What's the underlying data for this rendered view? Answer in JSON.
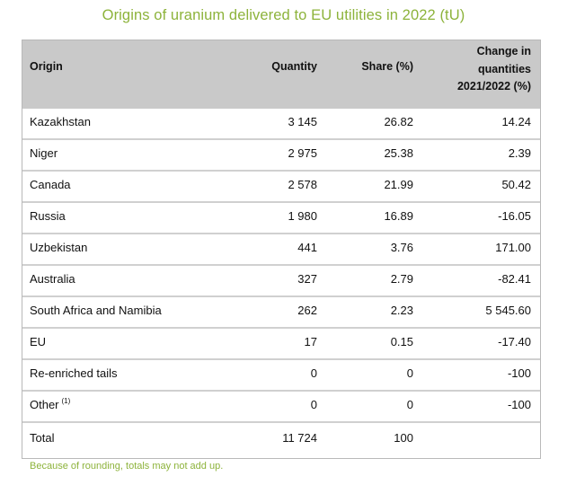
{
  "title": "Origins of uranium delivered to EU utilities in 2022 (tU)",
  "table": {
    "headers": {
      "origin": "Origin",
      "quantity": "Quantity",
      "share": "Share (%)",
      "change": "Change in\nquantities\n2021/2022 (%)"
    },
    "rows": [
      {
        "origin": "Kazakhstan",
        "sup": "",
        "quantity": "3 145",
        "share": "26.82",
        "change": "14.24"
      },
      {
        "origin": "Niger",
        "sup": "",
        "quantity": "2 975",
        "share": "25.38",
        "change": "2.39"
      },
      {
        "origin": "Canada",
        "sup": "",
        "quantity": "2 578",
        "share": "21.99",
        "change": "50.42"
      },
      {
        "origin": "Russia",
        "sup": "",
        "quantity": "1 980",
        "share": "16.89",
        "change": "-16.05"
      },
      {
        "origin": "Uzbekistan",
        "sup": "",
        "quantity": "441",
        "share": "3.76",
        "change": "171.00"
      },
      {
        "origin": "Australia",
        "sup": "",
        "quantity": "327",
        "share": "2.79",
        "change": "-82.41"
      },
      {
        "origin": "South Africa and Namibia",
        "sup": "",
        "quantity": "262",
        "share": "2.23",
        "change": "5 545.60"
      },
      {
        "origin": "EU",
        "sup": "",
        "quantity": "17",
        "share": "0.15",
        "change": "-17.40"
      },
      {
        "origin": "Re-enriched tails",
        "sup": "",
        "quantity": "0",
        "share": "0",
        "change": "-100"
      },
      {
        "origin": "Other",
        "sup": "(1)",
        "quantity": "0",
        "share": "0",
        "change": "-100"
      }
    ],
    "total": {
      "origin": "Total",
      "quantity": "11 724",
      "share": "100",
      "change": ""
    }
  },
  "footnote": "Because of rounding, totals may not add up."
}
